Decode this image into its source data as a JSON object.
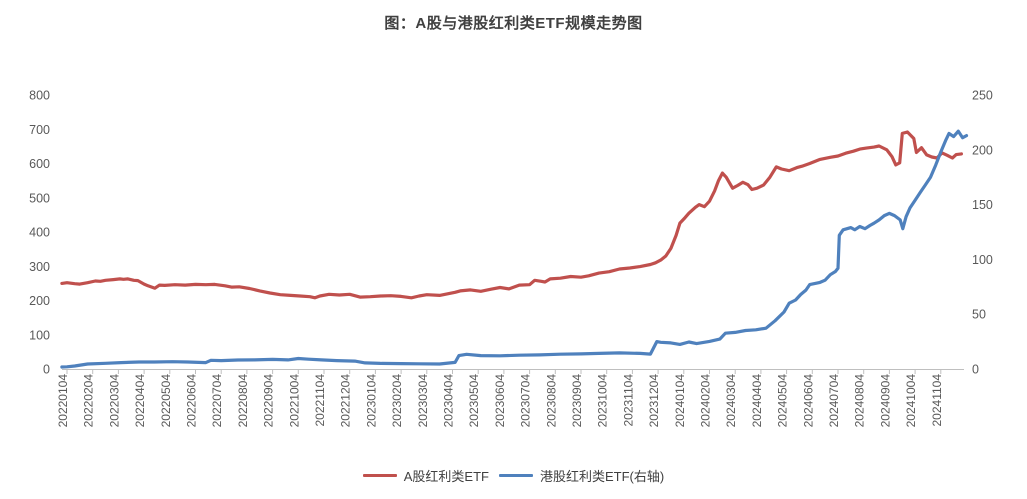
{
  "chart_data": {
    "type": "line",
    "title": "图：A股与港股红利类ETF规模走势图",
    "x_unit": "months_since_20220104",
    "x_tick_labels": [
      "20220104",
      "20220204",
      "20220304",
      "20220404",
      "20220504",
      "20220604",
      "20220704",
      "20220804",
      "20220904",
      "20221004",
      "20221104",
      "20221204",
      "20230104",
      "20230204",
      "20230304",
      "20230404",
      "20230504",
      "20230604",
      "20230704",
      "20230804",
      "20230904",
      "20231004",
      "20231104",
      "20231204",
      "20240104",
      "20240204",
      "20240304",
      "20240404",
      "20240504",
      "20240604",
      "20240704",
      "20240804",
      "20240904",
      "20241004",
      "20241104"
    ],
    "left_axis": {
      "min": 0,
      "max": 800,
      "tick_step": 100,
      "ticks": [
        0,
        100,
        200,
        300,
        400,
        500,
        600,
        700,
        800
      ]
    },
    "right_axis": {
      "min": 0,
      "max": 250,
      "tick_step": 50,
      "ticks": [
        0,
        50,
        100,
        150,
        200,
        250
      ]
    },
    "grid": "off",
    "legend_position": "bottom-center",
    "colors": {
      "red_series": "#c0504d",
      "blue_series": "#4f81bd",
      "axis_line": "#bfbfbf",
      "tick_mark": "#bfbfbf",
      "tick_label": "#595959",
      "title_text": "#404040"
    },
    "series": [
      {
        "name": "A股红利类ETF",
        "axis": "left",
        "color": "#c0504d",
        "points": [
          [
            -0.2,
            250
          ],
          [
            0,
            252
          ],
          [
            0.3,
            249
          ],
          [
            0.5,
            248
          ],
          [
            0.8,
            252
          ],
          [
            1.1,
            257
          ],
          [
            1.3,
            256
          ],
          [
            1.5,
            259
          ],
          [
            1.8,
            261
          ],
          [
            2.06,
            263
          ],
          [
            2.2,
            262
          ],
          [
            2.37,
            263
          ],
          [
            2.6,
            259
          ],
          [
            2.76,
            258
          ],
          [
            3.0,
            248
          ],
          [
            3.15,
            243
          ],
          [
            3.42,
            236
          ],
          [
            3.6,
            245
          ],
          [
            3.8,
            244
          ],
          [
            4.2,
            246
          ],
          [
            4.6,
            245
          ],
          [
            5.0,
            247
          ],
          [
            5.4,
            246
          ],
          [
            5.75,
            247
          ],
          [
            6.15,
            243
          ],
          [
            6.4,
            239
          ],
          [
            6.7,
            240
          ],
          [
            7.1,
            235
          ],
          [
            7.5,
            228
          ],
          [
            7.9,
            222
          ],
          [
            8.3,
            217
          ],
          [
            8.7,
            215
          ],
          [
            9.07,
            213
          ],
          [
            9.45,
            211
          ],
          [
            9.65,
            208
          ],
          [
            9.84,
            213
          ],
          [
            10.2,
            218
          ],
          [
            10.6,
            216
          ],
          [
            11.0,
            218
          ],
          [
            11.4,
            210
          ],
          [
            11.8,
            211
          ],
          [
            12.2,
            213
          ],
          [
            12.6,
            214
          ],
          [
            13.0,
            212
          ],
          [
            13.4,
            208
          ],
          [
            13.7,
            213
          ],
          [
            14.0,
            217
          ],
          [
            14.5,
            215
          ],
          [
            15.1,
            224
          ],
          [
            15.3,
            228
          ],
          [
            15.7,
            231
          ],
          [
            16.1,
            227
          ],
          [
            16.5,
            233
          ],
          [
            16.85,
            238
          ],
          [
            17.2,
            234
          ],
          [
            17.6,
            245
          ],
          [
            18.0,
            246
          ],
          [
            18.2,
            259
          ],
          [
            18.45,
            256
          ],
          [
            18.6,
            254
          ],
          [
            18.8,
            263
          ],
          [
            19.2,
            265
          ],
          [
            19.6,
            270
          ],
          [
            20.0,
            268
          ],
          [
            20.3,
            272
          ],
          [
            20.7,
            280
          ],
          [
            21.1,
            284
          ],
          [
            21.5,
            292
          ],
          [
            21.9,
            295
          ],
          [
            22.3,
            299
          ],
          [
            22.7,
            305
          ],
          [
            22.9,
            310
          ],
          [
            23.1,
            318
          ],
          [
            23.3,
            330
          ],
          [
            23.5,
            352
          ],
          [
            23.7,
            390
          ],
          [
            23.85,
            426
          ],
          [
            24.05,
            442
          ],
          [
            24.2,
            455
          ],
          [
            24.45,
            472
          ],
          [
            24.6,
            480
          ],
          [
            24.8,
            474
          ],
          [
            25.0,
            490
          ],
          [
            25.2,
            520
          ],
          [
            25.35,
            550
          ],
          [
            25.5,
            572
          ],
          [
            25.65,
            560
          ],
          [
            25.9,
            528
          ],
          [
            26.1,
            536
          ],
          [
            26.3,
            545
          ],
          [
            26.5,
            538
          ],
          [
            26.65,
            524
          ],
          [
            26.85,
            528
          ],
          [
            27.1,
            537
          ],
          [
            27.35,
            560
          ],
          [
            27.6,
            590
          ],
          [
            27.8,
            584
          ],
          [
            28.1,
            579
          ],
          [
            28.4,
            588
          ],
          [
            28.6,
            592
          ],
          [
            28.9,
            600
          ],
          [
            29.3,
            612
          ],
          [
            29.7,
            618
          ],
          [
            30.0,
            622
          ],
          [
            30.3,
            630
          ],
          [
            30.6,
            636
          ],
          [
            30.85,
            642
          ],
          [
            31.1,
            645
          ],
          [
            31.4,
            648
          ],
          [
            31.6,
            651
          ],
          [
            31.9,
            640
          ],
          [
            32.1,
            620
          ],
          [
            32.25,
            596
          ],
          [
            32.4,
            602
          ],
          [
            32.5,
            688
          ],
          [
            32.7,
            692
          ],
          [
            32.95,
            673
          ],
          [
            33.05,
            632
          ],
          [
            33.25,
            646
          ],
          [
            33.45,
            625
          ],
          [
            33.65,
            619
          ],
          [
            33.85,
            616
          ],
          [
            34.05,
            631
          ],
          [
            34.25,
            624
          ],
          [
            34.45,
            616
          ],
          [
            34.6,
            626
          ],
          [
            34.8,
            628
          ]
        ]
      },
      {
        "name": "港股红利类ETF(右轴)",
        "axis": "right",
        "color": "#4f81bd",
        "points": [
          [
            -0.2,
            1.8
          ],
          [
            0,
            2.0
          ],
          [
            0.3,
            2.7
          ],
          [
            0.8,
            4.6
          ],
          [
            1.5,
            5.2
          ],
          [
            2.1,
            5.8
          ],
          [
            2.8,
            6.4
          ],
          [
            3.4,
            6.4
          ],
          [
            4.1,
            6.7
          ],
          [
            4.7,
            6.4
          ],
          [
            5.4,
            5.8
          ],
          [
            5.6,
            7.9
          ],
          [
            6.0,
            7.7
          ],
          [
            6.65,
            8.2
          ],
          [
            7.3,
            8.3
          ],
          [
            8.0,
            8.8
          ],
          [
            8.6,
            8.3
          ],
          [
            9.0,
            9.6
          ],
          [
            9.4,
            8.9
          ],
          [
            9.9,
            8.3
          ],
          [
            10.5,
            7.7
          ],
          [
            11.2,
            7.2
          ],
          [
            11.6,
            5.6
          ],
          [
            12.2,
            5.1
          ],
          [
            13.0,
            4.9
          ],
          [
            13.7,
            4.7
          ],
          [
            14.5,
            4.6
          ],
          [
            15.1,
            6.0
          ],
          [
            15.25,
            12.2
          ],
          [
            15.55,
            13.4
          ],
          [
            16.1,
            12.2
          ],
          [
            16.85,
            12.0
          ],
          [
            17.6,
            12.6
          ],
          [
            18.4,
            12.9
          ],
          [
            19.2,
            13.5
          ],
          [
            20.0,
            13.8
          ],
          [
            20.7,
            14.2
          ],
          [
            21.5,
            14.7
          ],
          [
            22.3,
            14.2
          ],
          [
            22.7,
            13.6
          ],
          [
            22.95,
            25.0
          ],
          [
            23.1,
            24.4
          ],
          [
            23.5,
            23.8
          ],
          [
            23.85,
            22.4
          ],
          [
            24.2,
            24.6
          ],
          [
            24.5,
            23.2
          ],
          [
            25.0,
            25.2
          ],
          [
            25.4,
            27.3
          ],
          [
            25.62,
            32.7
          ],
          [
            26.0,
            33.4
          ],
          [
            26.4,
            35.1
          ],
          [
            26.8,
            35.8
          ],
          [
            27.2,
            37.2
          ],
          [
            27.55,
            44
          ],
          [
            27.9,
            52
          ],
          [
            28.1,
            60
          ],
          [
            28.35,
            63
          ],
          [
            28.55,
            68
          ],
          [
            28.75,
            72
          ],
          [
            28.9,
            77
          ],
          [
            29.3,
            79
          ],
          [
            29.5,
            81
          ],
          [
            29.7,
            86
          ],
          [
            29.9,
            89
          ],
          [
            30.0,
            92
          ],
          [
            30.05,
            122
          ],
          [
            30.2,
            127
          ],
          [
            30.5,
            129
          ],
          [
            30.65,
            127
          ],
          [
            30.85,
            130
          ],
          [
            31.05,
            128
          ],
          [
            31.25,
            131
          ],
          [
            31.4,
            133
          ],
          [
            31.6,
            136
          ],
          [
            31.8,
            140
          ],
          [
            32.0,
            142
          ],
          [
            32.2,
            140
          ],
          [
            32.42,
            136
          ],
          [
            32.52,
            128
          ],
          [
            32.65,
            139
          ],
          [
            32.8,
            147
          ],
          [
            33.0,
            154
          ],
          [
            33.2,
            161
          ],
          [
            33.4,
            168
          ],
          [
            33.6,
            175
          ],
          [
            33.8,
            186
          ],
          [
            34.0,
            198
          ],
          [
            34.2,
            209
          ],
          [
            34.32,
            215
          ],
          [
            34.5,
            212
          ],
          [
            34.68,
            217
          ],
          [
            34.85,
            211
          ],
          [
            35.0,
            213
          ]
        ]
      }
    ]
  }
}
